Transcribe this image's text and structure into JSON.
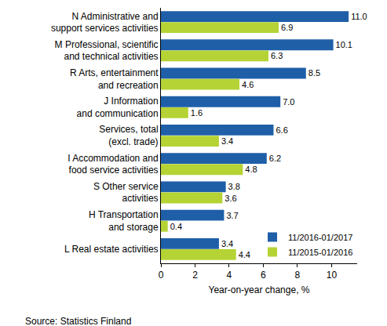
{
  "chart_data": {
    "type": "bar",
    "orientation": "horizontal",
    "categories": [
      "N Administrative and support services activities",
      "M Professional, scientific and technical activities",
      "R Arts, entertainment and recreation",
      "J Information and communication",
      "Services, total (excl. trade)",
      "I Accommodation and food service activities",
      "S Other service activities",
      "H Transportation and storage",
      "L Real estate activities"
    ],
    "series": [
      {
        "name": "11/2016-01/2017",
        "color": "#1f5fa8",
        "values": [
          11.0,
          10.1,
          8.5,
          7.0,
          6.6,
          6.2,
          3.8,
          3.7,
          3.4
        ],
        "value_labels": [
          "11.0",
          "10.1",
          "8.5",
          "7.0",
          "6.6",
          "6.2",
          "3.8",
          "3.7",
          "3.4"
        ]
      },
      {
        "name": "11/2015-01/2016",
        "color": "#b5d334",
        "values": [
          6.9,
          6.3,
          4.6,
          1.6,
          3.4,
          4.8,
          3.6,
          0.4,
          4.4
        ],
        "value_labels": [
          "6.9",
          "6.3",
          "4.6",
          "1.6",
          "3.4",
          "4.8",
          "3.6",
          "0.4",
          "4.4"
        ]
      }
    ],
    "x_label": "Year-on-year change, %",
    "xlim": [
      0,
      11.5
    ],
    "xticks": [
      0,
      2,
      4,
      6,
      8,
      10
    ],
    "grid": false,
    "legend": "bottom-right",
    "data_labels": true,
    "annotations": [
      {
        "text": "Source: Statistics Finland"
      }
    ]
  }
}
